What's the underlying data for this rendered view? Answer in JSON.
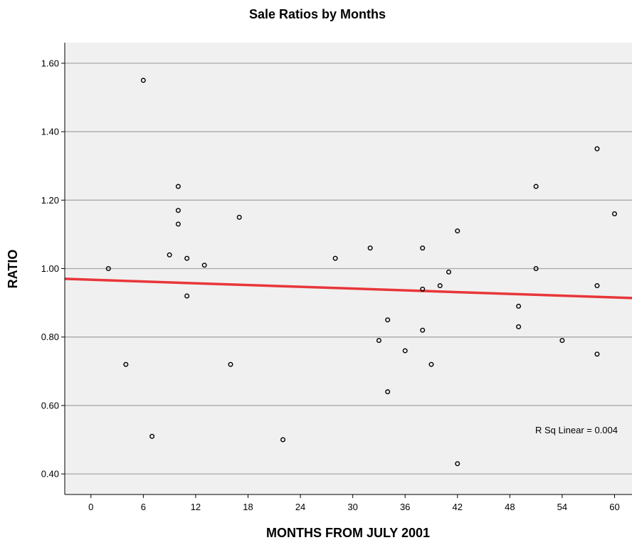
{
  "chart_data": {
    "type": "scatter",
    "title": "Sale Ratios by Months",
    "xlabel": "MONTHS FROM JULY 2001",
    "ylabel": "RATIO",
    "xlim": [
      -3,
      62
    ],
    "ylim": [
      0.34,
      1.66
    ],
    "x_ticks": [
      0,
      6,
      12,
      18,
      24,
      30,
      36,
      42,
      48,
      54,
      60
    ],
    "x_tick_labels": [
      "0",
      "6",
      "12",
      "18",
      "24",
      "30",
      "36",
      "42",
      "48",
      "54",
      "60"
    ],
    "y_ticks": [
      0.4,
      0.6,
      0.8,
      1.0,
      1.2,
      1.4,
      1.6
    ],
    "y_tick_labels": [
      "0.40",
      "0.60",
      "0.80",
      "1.00",
      "1.20",
      "1.40",
      "1.60"
    ],
    "grid": "horizontal",
    "points": [
      {
        "x": 2,
        "y": 1.0
      },
      {
        "x": 4,
        "y": 0.72
      },
      {
        "x": 6,
        "y": 1.55
      },
      {
        "x": 7,
        "y": 0.51
      },
      {
        "x": 9,
        "y": 1.04
      },
      {
        "x": 10,
        "y": 1.24
      },
      {
        "x": 10,
        "y": 1.17
      },
      {
        "x": 10,
        "y": 1.13
      },
      {
        "x": 11,
        "y": 1.03
      },
      {
        "x": 11,
        "y": 0.92
      },
      {
        "x": 13,
        "y": 1.01
      },
      {
        "x": 16,
        "y": 0.72
      },
      {
        "x": 17,
        "y": 1.15
      },
      {
        "x": 22,
        "y": 0.5
      },
      {
        "x": 28,
        "y": 1.03
      },
      {
        "x": 32,
        "y": 1.06
      },
      {
        "x": 33,
        "y": 0.79
      },
      {
        "x": 34,
        "y": 0.85
      },
      {
        "x": 34,
        "y": 0.64
      },
      {
        "x": 36,
        "y": 0.76
      },
      {
        "x": 38,
        "y": 1.06
      },
      {
        "x": 38,
        "y": 0.94
      },
      {
        "x": 38,
        "y": 0.82
      },
      {
        "x": 39,
        "y": 0.72
      },
      {
        "x": 40,
        "y": 0.95
      },
      {
        "x": 41,
        "y": 0.99
      },
      {
        "x": 42,
        "y": 1.11
      },
      {
        "x": 42,
        "y": 0.43
      },
      {
        "x": 49,
        "y": 0.89
      },
      {
        "x": 49,
        "y": 0.83
      },
      {
        "x": 51,
        "y": 1.24
      },
      {
        "x": 51,
        "y": 1.0
      },
      {
        "x": 54,
        "y": 0.79
      },
      {
        "x": 58,
        "y": 1.35
      },
      {
        "x": 58,
        "y": 0.95
      },
      {
        "x": 58,
        "y": 0.75
      },
      {
        "x": 60,
        "y": 1.16
      }
    ],
    "fit_line": {
      "type": "linear",
      "x": [
        -3,
        62
      ],
      "y": [
        0.97,
        0.914
      ],
      "color": "#e8363a"
    },
    "annotation": "R Sq Linear = 0.004",
    "plot_background": "#f0f0f0",
    "grid_color": "#a8a8a8",
    "marker_color": "#000000"
  }
}
